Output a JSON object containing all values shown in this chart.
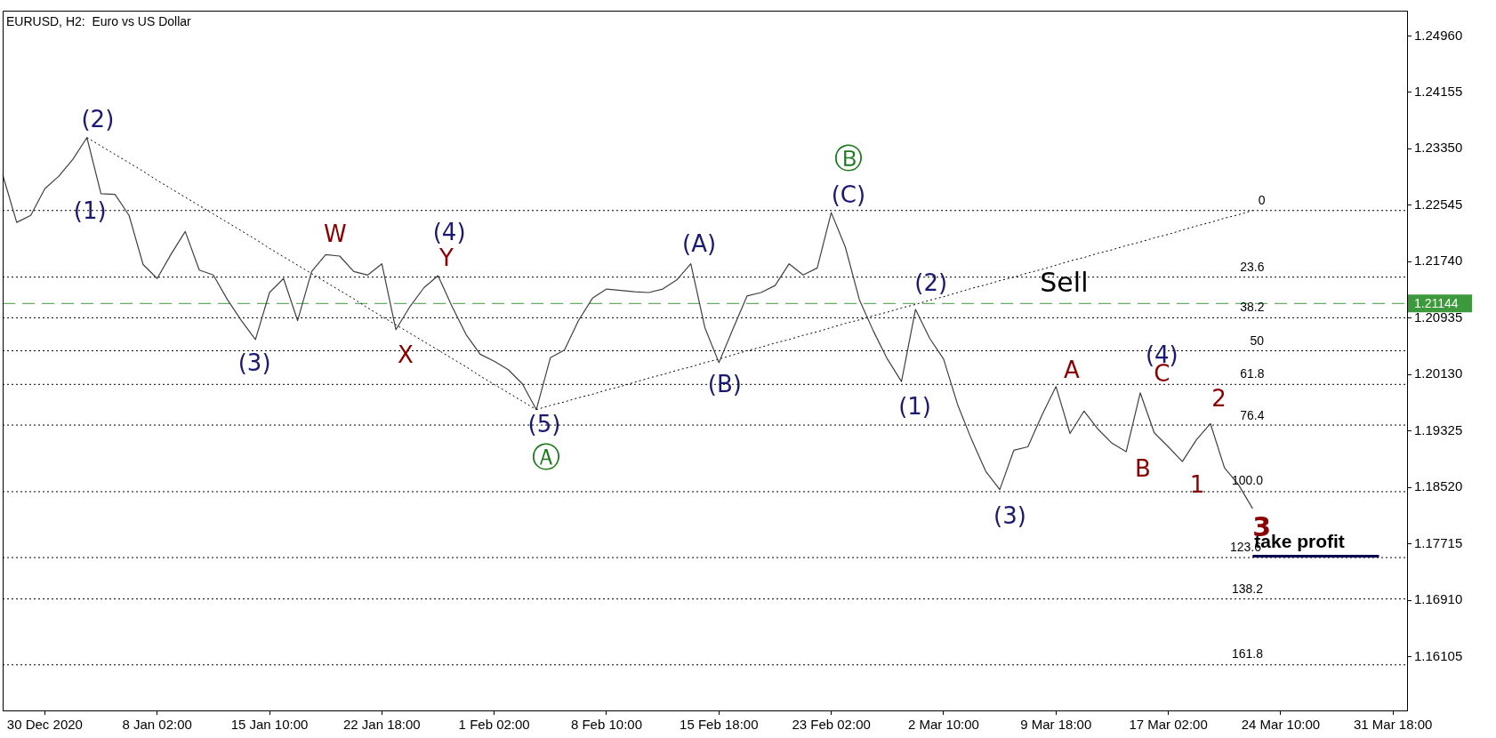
{
  "chart_data": {
    "type": "line",
    "title": "EURUSD, H2:  Euro vs US Dollar",
    "categories": [
      null,
      null,
      null,
      "30 Dec 2020",
      null,
      null,
      null,
      null,
      null,
      null,
      null,
      "8 Jan 02:00",
      null,
      null,
      null,
      null,
      null,
      null,
      null,
      "15 Jan 10:00",
      null,
      null,
      null,
      null,
      null,
      null,
      null,
      "22 Jan 18:00",
      null,
      null,
      null,
      null,
      null,
      null,
      null,
      "1 Feb 02:00",
      null,
      null,
      null,
      null,
      null,
      null,
      null,
      "8 Feb 10:00",
      null,
      null,
      null,
      null,
      null,
      null,
      null,
      "15 Feb 18:00",
      null,
      null,
      null,
      null,
      null,
      null,
      null,
      "23 Feb 02:00",
      null,
      null,
      null,
      null,
      null,
      null,
      null,
      "2 Mar 10:00",
      null,
      null,
      null,
      null,
      null,
      null,
      null,
      "9 Mar 18:00",
      null,
      null,
      null,
      null,
      null,
      null,
      null,
      "17 Mar 02:00",
      null,
      null,
      null,
      null,
      null,
      null,
      null,
      "24 Mar 10:00",
      null,
      null,
      null,
      null,
      null,
      null,
      null,
      "31 Mar 18:00",
      null
    ],
    "ylim": [
      1.1534,
      1.2532
    ],
    "yticks": [
      {
        "value": 1.16105,
        "label": "1.16105"
      },
      {
        "value": 1.1691,
        "label": "1.16910"
      },
      {
        "value": 1.17715,
        "label": "1.17715"
      },
      {
        "value": 1.1852,
        "label": "1.18520"
      },
      {
        "value": 1.19325,
        "label": "1.19325"
      },
      {
        "value": 1.2013,
        "label": "1.20130"
      },
      {
        "value": 1.20935,
        "label": "1.20935"
      },
      {
        "value": 1.2174,
        "label": "1.21740"
      },
      {
        "value": 1.22545,
        "label": "1.22545"
      },
      {
        "value": 1.2335,
        "label": "1.23350"
      },
      {
        "value": 1.24155,
        "label": "1.24155"
      },
      {
        "value": 1.2496,
        "label": "1.24960"
      }
    ],
    "grid": false,
    "legend": false,
    "marker": "none",
    "line_style": "solid",
    "series": [
      {
        "color": "#404040",
        "values": [
          1.2298,
          1.223,
          1.224,
          1.2278,
          1.2296,
          1.232,
          1.2351,
          1.2271,
          1.227,
          1.224,
          1.217,
          1.215,
          1.2185,
          1.2217,
          1.2162,
          1.2155,
          1.212,
          1.209,
          1.2063,
          1.213,
          1.215,
          1.209,
          1.216,
          1.2184,
          1.2182,
          1.216,
          1.2155,
          1.2171,
          1.2077,
          1.211,
          1.2137,
          1.2154,
          1.211,
          1.207,
          1.2042,
          1.2032,
          1.202,
          1.2,
          1.1963,
          1.2037,
          1.2048,
          1.209,
          1.2122,
          1.2135,
          1.2133,
          1.2131,
          1.213,
          1.2135,
          1.2148,
          1.2171,
          1.208,
          1.203,
          1.2078,
          1.2125,
          1.213,
          1.214,
          1.2171,
          1.2155,
          1.2165,
          1.2244,
          1.2195,
          1.212,
          1.2075,
          1.2035,
          1.2003,
          1.2106,
          1.2065,
          1.2035,
          1.197,
          1.192,
          1.1875,
          1.1849,
          1.1905,
          1.191,
          1.1955,
          1.1996,
          1.1929,
          1.1961,
          1.1935,
          1.1915,
          1.1903,
          1.1987,
          1.193,
          1.191,
          1.1889,
          1.192,
          1.1943,
          1.188,
          1.1856,
          1.1822,
          null,
          null,
          null,
          null,
          null,
          null,
          null,
          null,
          null,
          null,
          null
        ]
      },
      {
        "color": "#000000",
        "line_style": "dotted",
        "values": [
          null,
          null,
          null,
          null,
          null,
          null,
          1.2351,
          1.2339,
          1.2327,
          1.2315,
          1.2303,
          1.229,
          1.2278,
          1.2266,
          1.2254,
          1.2242,
          1.223,
          1.2218,
          1.2206,
          1.2193,
          1.2181,
          1.2169,
          1.2157,
          1.2145,
          1.2133,
          1.2121,
          1.2108,
          1.2096,
          1.2084,
          1.2072,
          1.206,
          1.2048,
          1.2036,
          1.2024,
          1.2011,
          1.1999,
          1.1987,
          1.1975,
          1.1963,
          null,
          null,
          null,
          null,
          null,
          null,
          null,
          null,
          null,
          null,
          null,
          null,
          null,
          null,
          null,
          null,
          null,
          null,
          null,
          null,
          null,
          null,
          null,
          null,
          null,
          null,
          null,
          null,
          null,
          null,
          null,
          null,
          null,
          null,
          null,
          null,
          null,
          null,
          null,
          null,
          null,
          null,
          null,
          null,
          null,
          null,
          null,
          null,
          null,
          null,
          null,
          null,
          null,
          null,
          null,
          null,
          null,
          null,
          null,
          null,
          null,
          null
        ]
      },
      {
        "color": "#000000",
        "line_style": "dotted",
        "values": [
          null,
          null,
          null,
          null,
          null,
          null,
          null,
          null,
          null,
          null,
          null,
          null,
          null,
          null,
          null,
          null,
          null,
          null,
          null,
          null,
          null,
          null,
          null,
          null,
          null,
          null,
          null,
          null,
          null,
          null,
          null,
          null,
          null,
          null,
          null,
          null,
          null,
          null,
          1.1963,
          1.1969,
          1.1974,
          1.198,
          1.1985,
          1.1991,
          1.1996,
          1.2002,
          1.2008,
          1.2013,
          1.2019,
          1.2024,
          1.203,
          1.2035,
          1.2041,
          1.2047,
          1.2052,
          1.2058,
          1.2063,
          1.2069,
          1.2074,
          1.208,
          1.2086,
          1.2091,
          1.2097,
          1.2102,
          1.2108,
          1.2113,
          1.2119,
          1.2124,
          1.213,
          1.2136,
          1.2141,
          1.2147,
          1.2152,
          1.2158,
          1.2163,
          1.2169,
          1.2175,
          1.218,
          1.2186,
          1.2191,
          1.2197,
          1.2202,
          1.2208,
          1.2213,
          1.2219,
          1.2225,
          1.223,
          1.2236,
          1.2241,
          1.2247,
          null,
          null,
          null,
          null,
          null,
          null,
          null,
          null,
          null,
          null,
          null
        ]
      },
      {
        "name": "take profit",
        "color": "#000050",
        "values": [
          null,
          null,
          null,
          null,
          null,
          null,
          null,
          null,
          null,
          null,
          null,
          null,
          null,
          null,
          null,
          null,
          null,
          null,
          null,
          null,
          null,
          null,
          null,
          null,
          null,
          null,
          null,
          null,
          null,
          null,
          null,
          null,
          null,
          null,
          null,
          null,
          null,
          null,
          null,
          null,
          null,
          null,
          null,
          null,
          null,
          null,
          null,
          null,
          null,
          null,
          null,
          null,
          null,
          null,
          null,
          null,
          null,
          null,
          null,
          null,
          null,
          null,
          null,
          null,
          null,
          null,
          null,
          null,
          null,
          null,
          null,
          null,
          null,
          null,
          null,
          null,
          null,
          null,
          null,
          null,
          null,
          null,
          null,
          null,
          null,
          null,
          null,
          null,
          null,
          1.1754,
          1.1754,
          1.1754,
          1.1754,
          1.1754,
          1.1754,
          1.1754,
          1.1754,
          1.1754,
          1.1754,
          null,
          null
        ]
      }
    ],
    "ref_lines": [
      {
        "axis": "y",
        "value": 1.21144,
        "label": "1.21144",
        "color": "#3c9a3c",
        "line_style": "dashed"
      },
      {
        "axis": "y",
        "value": 1.2247,
        "color": "#000000",
        "line_style": "dotted"
      },
      {
        "axis": "y",
        "value": 1.2152,
        "color": "#000000",
        "line_style": "dotted"
      },
      {
        "axis": "y",
        "value": 1.2094,
        "color": "#000000",
        "line_style": "dotted"
      },
      {
        "axis": "y",
        "value": 1.2047,
        "color": "#000000",
        "line_style": "dotted"
      },
      {
        "axis": "y",
        "value": 1.1999,
        "color": "#000000",
        "line_style": "dotted"
      },
      {
        "axis": "y",
        "value": 1.1941,
        "color": "#000000",
        "line_style": "dotted"
      },
      {
        "axis": "y",
        "value": 1.1846,
        "color": "#000000",
        "line_style": "dotted"
      },
      {
        "axis": "y",
        "value": 1.1752,
        "color": "#000000",
        "line_style": "dotted"
      },
      {
        "axis": "y",
        "value": 1.1693,
        "color": "#000000",
        "line_style": "dotted"
      },
      {
        "axis": "y",
        "value": 1.1599,
        "color": "#000000",
        "line_style": "dotted"
      }
    ],
    "annotations": [
      "0",
      "23.6",
      "38.2",
      "50",
      "61.8",
      "76.4",
      "100.0",
      "123.6",
      "138.2",
      "161.8",
      "(2)",
      "(1)",
      "(3)",
      "W",
      "X",
      "(4)",
      "Y",
      "(5)",
      "Ⓐ",
      "(A)",
      "(B)",
      "(C)",
      "Ⓑ",
      "(2)",
      "Sell",
      "(1)",
      "(3)",
      "A",
      "(4)",
      "C",
      "B",
      "2",
      "1",
      "3"
    ]
  }
}
